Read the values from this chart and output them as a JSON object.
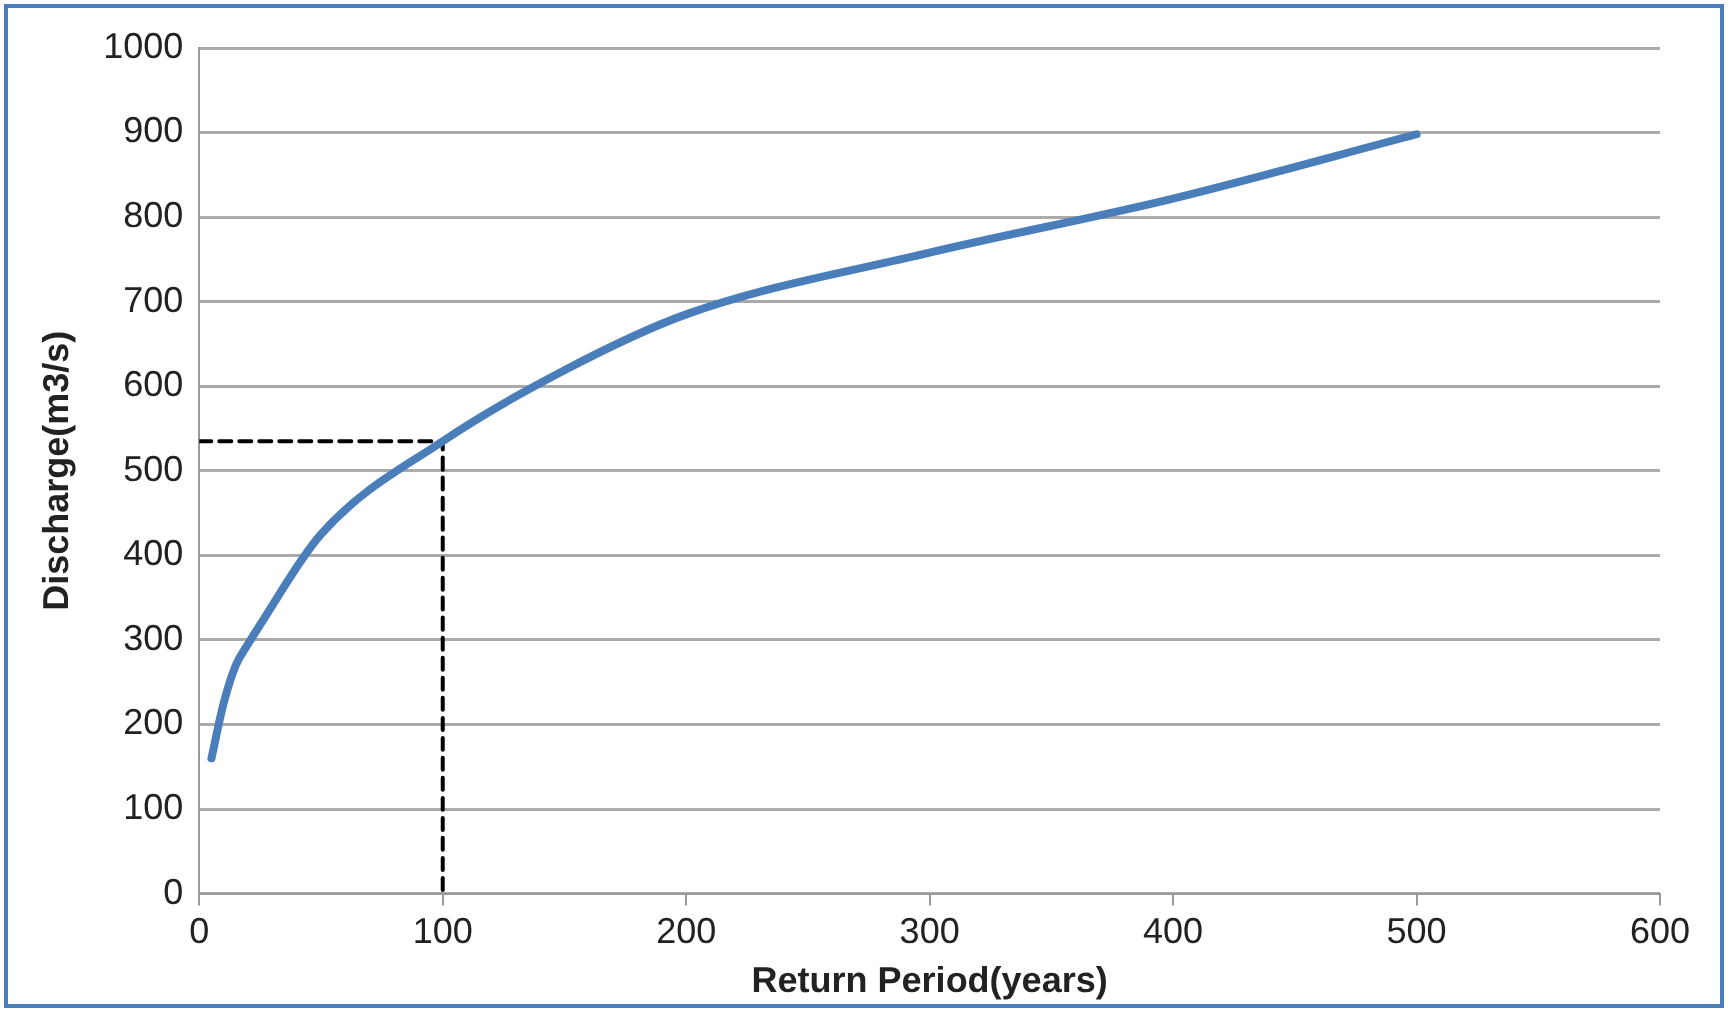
{
  "chart_data": {
    "type": "line",
    "xlabel": "Return Period(years)",
    "ylabel": "Discharge(m3/s)",
    "xlim": [
      0,
      600
    ],
    "xticks": [
      0,
      100,
      200,
      300,
      400,
      500,
      600
    ],
    "ylim": [
      0,
      1000
    ],
    "yticks": [
      0,
      100,
      200,
      300,
      400,
      500,
      600,
      700,
      800,
      900,
      1000
    ],
    "grid": "y",
    "legend": false,
    "marker": "none",
    "series": [
      {
        "color": "#4a7ebb",
        "line_style": "solid",
        "x": [
          5,
          10,
          15,
          20,
          25,
          50,
          100,
          150,
          200,
          300,
          400,
          500
        ],
        "values": [
          160,
          225,
          270,
          295,
          318,
          425,
          535,
          619,
          685,
          758,
          822,
          898
        ]
      },
      {
        "color": "#000000",
        "line_style": "dashed",
        "x": [
          0,
          100,
          100
        ],
        "values": [
          535,
          535,
          0
        ]
      }
    ]
  }
}
